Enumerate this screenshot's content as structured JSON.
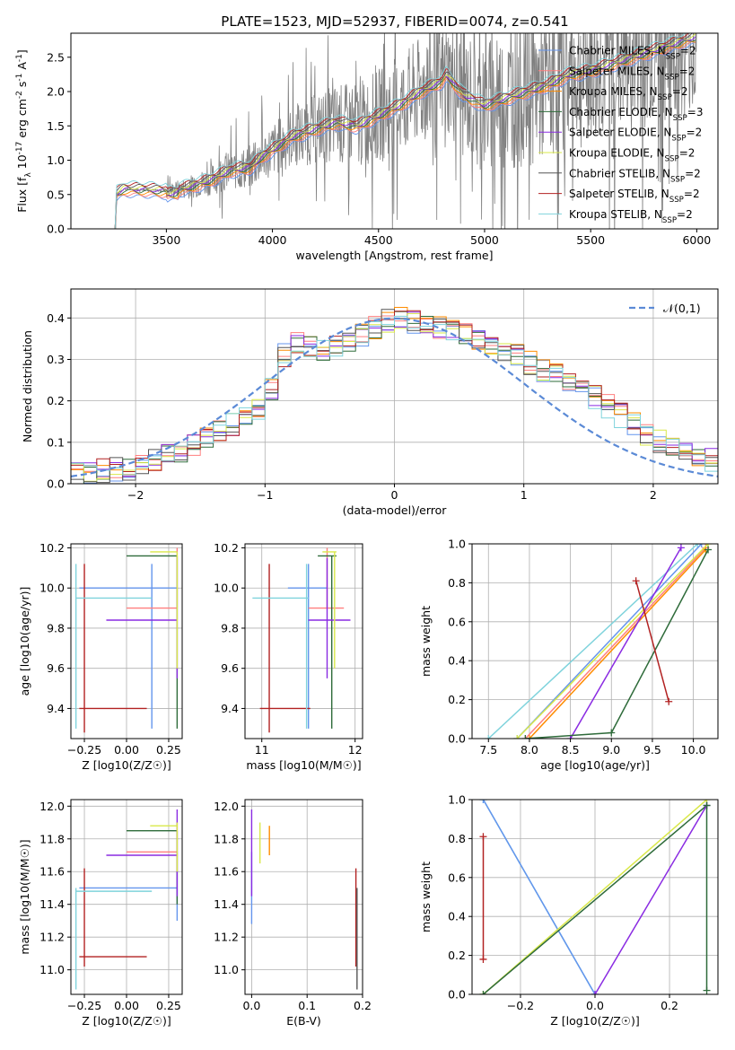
{
  "figure": {
    "title": "PLATE=1523, MJD=52937, FIBERID=0074, z=0.541"
  },
  "colors": {
    "data": "#808080",
    "models": [
      "#6495ed",
      "#ff7f7f",
      "#ff8c00",
      "#2e6b3a",
      "#8a2be2",
      "#d9e84a",
      "#555555",
      "#b22222",
      "#7fd3dc"
    ]
  },
  "chart_data": [
    {
      "id": "spectrum",
      "type": "line",
      "xlabel": "wavelength [Angstrom, rest frame]",
      "ylabel": "Flux [f_λ 10^{-17} erg cm^{-2} s^{-1} A^{-1}]",
      "xlim": [
        3050,
        6100
      ],
      "ylim": [
        0,
        2.85
      ],
      "xticks": [
        3500,
        4000,
        4500,
        5000,
        5500,
        6000
      ],
      "yticks": [
        0.0,
        0.5,
        1.0,
        1.5,
        2.0,
        2.5
      ],
      "grid": false,
      "legend_position": "top-right",
      "legend": [
        "Chabrier MILES, N_SSP=2",
        "Salpeter MILES, N_SSP=2",
        "Kroupa MILES, N_SSP=2",
        "Chabrier ELODIE, N_SSP=3",
        "Salpeter ELODIE, N_SSP=2",
        "Kroupa ELODIE, N_SSP=2",
        "Chabrier STELIB, N_SSP=2",
        "Salpeter STELIB, N_SSP=2",
        "Kroupa STELIB, N_SSP=2"
      ],
      "model_anchor": {
        "x": [
          3250,
          3260,
          3300,
          3400,
          3500,
          3600,
          3700,
          3800,
          3900,
          3950,
          4000,
          4100,
          4200,
          4300,
          4400,
          4500,
          4600,
          4700,
          4800,
          4820,
          4900,
          5000,
          5100,
          5200,
          5300,
          5400,
          5500,
          5600,
          5700,
          5800,
          5900,
          6000
        ],
        "y": [
          0,
          0.5,
          0.58,
          0.57,
          0.55,
          0.6,
          0.7,
          0.85,
          0.9,
          1.05,
          1.15,
          1.35,
          1.45,
          1.55,
          1.5,
          1.65,
          1.8,
          2.0,
          2.15,
          2.25,
          1.95,
          1.8,
          1.9,
          2.0,
          2.1,
          2.25,
          2.3,
          2.4,
          2.5,
          2.6,
          2.7,
          2.8
        ]
      }
    },
    {
      "id": "residuals",
      "type": "line",
      "xlabel": "(data-model)/error",
      "ylabel": "Normed distribution",
      "xlim": [
        -2.5,
        2.5
      ],
      "ylim": [
        0,
        0.47
      ],
      "xticks": [
        -2,
        -1,
        0,
        1,
        2
      ],
      "yticks": [
        0.0,
        0.1,
        0.2,
        0.3,
        0.4
      ],
      "grid": true,
      "legend_position": "top-right",
      "legend": [
        "𝒩(0,1)"
      ],
      "hist_anchor": {
        "x": [
          -2.5,
          -2.0,
          -1.5,
          -1.0,
          -0.8,
          -0.5,
          0.0,
          0.5,
          1.0,
          1.5,
          2.0,
          2.5
        ],
        "y": [
          0.02,
          0.04,
          0.1,
          0.19,
          0.35,
          0.32,
          0.4,
          0.37,
          0.3,
          0.22,
          0.11,
          0.05
        ]
      }
    },
    {
      "id": "age-vs-Z",
      "type": "scatter",
      "xlabel": "Z [log10(Z/Z☉)]",
      "ylabel": "age [log10(age/yr)]",
      "xlim": [
        -0.33,
        0.33
      ],
      "ylim": [
        9.25,
        10.22
      ],
      "xticks": [
        -0.25,
        0.0,
        0.25
      ],
      "yticks": [
        9.4,
        9.6,
        9.8,
        10.0,
        10.2
      ],
      "grid": true,
      "crosses": [
        {
          "c": 0,
          "h": [
            -0.28,
            0.3
          ],
          "v": [
            9.3,
            10.12
          ],
          "x": 0.15,
          "y": 10.0
        },
        {
          "c": 1,
          "h": [
            0.0,
            0.3
          ],
          "v": [
            9.9,
            10.2
          ],
          "x": 0.3,
          "y": 9.9
        },
        {
          "c": 3,
          "h": [
            0.0,
            0.3
          ],
          "v": [
            9.3,
            10.16
          ],
          "x": 0.3,
          "y": 10.16
        },
        {
          "c": 4,
          "h": [
            -0.12,
            0.3
          ],
          "v": [
            9.55,
            10.15
          ],
          "x": 0.3,
          "y": 9.84
        },
        {
          "c": 5,
          "h": [
            0.14,
            0.3
          ],
          "v": [
            9.6,
            10.18
          ],
          "x": 0.3,
          "y": 10.18
        },
        {
          "c": 7,
          "h": [
            -0.28,
            0.12
          ],
          "v": [
            9.28,
            10.12
          ],
          "x": -0.25,
          "y": 9.4
        },
        {
          "c": 8,
          "h": [
            -0.3,
            0.15
          ],
          "v": [
            9.3,
            10.12
          ],
          "x": -0.3,
          "y": 9.95
        }
      ]
    },
    {
      "id": "age-vs-mass",
      "type": "scatter",
      "xlabel": "mass [log10(M/M☉)]",
      "ylabel": "",
      "xlim": [
        10.82,
        12.08
      ],
      "ylim": [
        9.25,
        10.22
      ],
      "xticks": [
        11,
        12
      ],
      "yticks": [
        9.4,
        9.6,
        9.8,
        10.0,
        10.2
      ],
      "grid": true,
      "crosses": [
        {
          "c": 0,
          "h": [
            11.28,
            11.7
          ],
          "v": [
            9.3,
            10.12
          ],
          "x": 11.5,
          "y": 10.0
        },
        {
          "c": 1,
          "h": [
            11.5,
            11.88
          ],
          "v": [
            9.9,
            10.2
          ],
          "x": 11.7,
          "y": 9.9
        },
        {
          "c": 3,
          "h": [
            11.6,
            11.8
          ],
          "v": [
            9.3,
            10.16
          ],
          "x": 11.75,
          "y": 10.16
        },
        {
          "c": 4,
          "h": [
            11.5,
            11.95
          ],
          "v": [
            9.55,
            10.15
          ],
          "x": 11.7,
          "y": 9.84
        },
        {
          "c": 5,
          "h": [
            11.65,
            11.8
          ],
          "v": [
            9.6,
            10.18
          ],
          "x": 11.78,
          "y": 10.18
        },
        {
          "c": 7,
          "h": [
            10.98,
            11.52
          ],
          "v": [
            9.28,
            10.12
          ],
          "x": 11.08,
          "y": 9.4
        },
        {
          "c": 8,
          "h": [
            10.9,
            11.5
          ],
          "v": [
            9.3,
            10.12
          ],
          "x": 11.48,
          "y": 9.95
        }
      ]
    },
    {
      "id": "weight-vs-age",
      "type": "line",
      "xlabel": "age [log10(age/yr)]",
      "ylabel": "mass weight",
      "xlim": [
        7.3,
        10.3
      ],
      "ylim": [
        0,
        1.0
      ],
      "xticks": [
        7.5,
        8.0,
        8.5,
        9.0,
        9.5,
        10.0
      ],
      "yticks": [
        0.0,
        0.2,
        0.4,
        0.6,
        0.8,
        1.0
      ],
      "grid": true,
      "series": [
        {
          "c": 8,
          "x": [
            7.5,
            10.05
          ],
          "y": [
            0.0,
            1.0
          ]
        },
        {
          "c": 0,
          "x": [
            7.85,
            10.1
          ],
          "y": [
            0.0,
            1.0
          ]
        },
        {
          "c": 1,
          "x": [
            7.95,
            10.15
          ],
          "y": [
            0.0,
            0.98
          ]
        },
        {
          "c": 2,
          "x": [
            8.0,
            10.15
          ],
          "y": [
            0.0,
            0.97
          ]
        },
        {
          "c": 5,
          "x": [
            7.85,
            10.18
          ],
          "y": [
            0.0,
            1.0
          ]
        },
        {
          "c": 4,
          "x": [
            8.5,
            9.85
          ],
          "y": [
            0.0,
            0.98
          ]
        },
        {
          "c": 3,
          "x": [
            7.95,
            9.0,
            10.18
          ],
          "y": [
            0.0,
            0.03,
            0.97
          ]
        },
        {
          "c": 7,
          "x": [
            9.3,
            9.7
          ],
          "y": [
            0.81,
            0.19
          ]
        }
      ]
    },
    {
      "id": "mass-vs-Z",
      "type": "scatter",
      "xlabel": "Z [log10(Z/Z☉)]",
      "ylabel": "mass [log10(M/M☉)]",
      "xlim": [
        -0.33,
        0.33
      ],
      "ylim": [
        10.85,
        12.04
      ],
      "xticks": [
        -0.25,
        0.0,
        0.25
      ],
      "yticks": [
        11.0,
        11.2,
        11.4,
        11.6,
        11.8,
        12.0
      ],
      "grid": true,
      "crosses": [
        {
          "c": 0,
          "h": [
            -0.28,
            0.3
          ],
          "v": [
            11.3,
            11.72
          ],
          "x": 0.3,
          "y": 11.5
        },
        {
          "c": 1,
          "h": [
            0.0,
            0.3
          ],
          "v": [
            11.6,
            11.9
          ],
          "x": 0.3,
          "y": 11.72
        },
        {
          "c": 3,
          "h": [
            0.0,
            0.3
          ],
          "v": [
            11.4,
            11.85
          ],
          "x": 0.3,
          "y": 11.85
        },
        {
          "c": 4,
          "h": [
            -0.12,
            0.3
          ],
          "v": [
            11.45,
            11.98
          ],
          "x": 0.3,
          "y": 11.7
        },
        {
          "c": 5,
          "h": [
            0.14,
            0.3
          ],
          "v": [
            11.6,
            11.9
          ],
          "x": 0.3,
          "y": 11.88
        },
        {
          "c": 7,
          "h": [
            -0.28,
            0.12
          ],
          "v": [
            11.02,
            11.62
          ],
          "x": -0.25,
          "y": 11.08
        },
        {
          "c": 8,
          "h": [
            -0.3,
            0.15
          ],
          "v": [
            10.88,
            11.5
          ],
          "x": -0.3,
          "y": 11.48
        }
      ]
    },
    {
      "id": "mass-vs-EBV",
      "type": "scatter",
      "xlabel": "E(B-V)",
      "ylabel": "",
      "xlim": [
        -0.012,
        0.2
      ],
      "ylim": [
        10.85,
        12.04
      ],
      "xticks": [
        0.0,
        0.1,
        0.2
      ],
      "yticks": [
        11.0,
        11.2,
        11.4,
        11.6,
        11.8,
        12.0
      ],
      "grid": true,
      "crosses": [
        {
          "c": 0,
          "h": [
            0.0,
            0.0
          ],
          "v": [
            11.28,
            11.72
          ],
          "x": 0.0,
          "y": 11.5
        },
        {
          "c": 4,
          "h": [
            0.0,
            0.0
          ],
          "v": [
            11.45,
            11.98
          ],
          "x": 0.0,
          "y": 11.7
        },
        {
          "c": 5,
          "h": [
            0.015,
            0.015
          ],
          "v": [
            11.65,
            11.9
          ],
          "x": 0.015,
          "y": 11.78
        },
        {
          "c": 2,
          "h": [
            0.032,
            0.032
          ],
          "v": [
            11.7,
            11.88
          ],
          "x": 0.032,
          "y": 11.8
        },
        {
          "c": 7,
          "h": [
            0.188,
            0.188
          ],
          "v": [
            11.02,
            11.62
          ],
          "x": 0.188,
          "y": 11.5
        },
        {
          "c": 6,
          "h": [
            0.19,
            0.19
          ],
          "v": [
            10.88,
            11.5
          ],
          "x": 0.19,
          "y": 11.2
        }
      ]
    },
    {
      "id": "weight-vs-Z",
      "type": "line",
      "xlabel": "Z [log10(Z/Z☉)]",
      "ylabel": "mass weight",
      "xlim": [
        -0.33,
        0.33
      ],
      "ylim": [
        0,
        1.0
      ],
      "xticks": [
        -0.2,
        0.0,
        0.2
      ],
      "yticks": [
        0.0,
        0.2,
        0.4,
        0.6,
        0.8,
        1.0
      ],
      "grid": true,
      "series": [
        {
          "c": 8,
          "x": [
            -0.3,
            0.0
          ],
          "y": [
            1.0,
            0.0
          ]
        },
        {
          "c": 0,
          "x": [
            -0.3,
            0.0
          ],
          "y": [
            1.0,
            0.0
          ]
        },
        {
          "c": 5,
          "x": [
            -0.3,
            0.3
          ],
          "y": [
            0.0,
            1.0
          ]
        },
        {
          "c": 3,
          "x": [
            -0.3,
            0.3
          ],
          "y": [
            0.0,
            0.97
          ]
        },
        {
          "c": 4,
          "x": [
            0.0,
            0.3
          ],
          "y": [
            0.0,
            0.97
          ]
        },
        {
          "c": 7,
          "x": [
            -0.3,
            -0.3
          ],
          "y": [
            0.18,
            0.81
          ]
        },
        {
          "c": 3,
          "x": [
            0.3,
            0.3
          ],
          "y": [
            0.02,
            0.97
          ]
        }
      ]
    }
  ]
}
